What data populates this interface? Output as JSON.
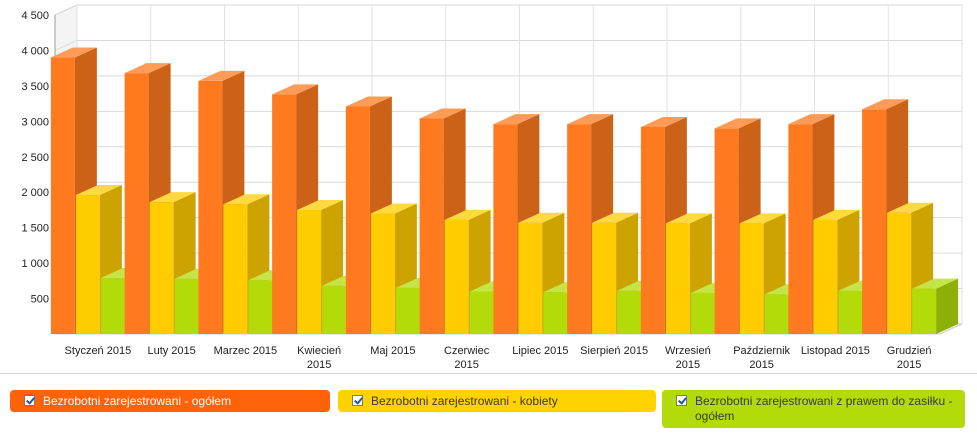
{
  "chart_data": {
    "type": "bar",
    "style": "3d-clustered",
    "categories": [
      [
        "Styczeń 2015"
      ],
      [
        "Luty 2015"
      ],
      [
        "Marzec 2015"
      ],
      [
        "Kwiecień",
        "2015"
      ],
      [
        "Maj 2015"
      ],
      [
        "Czerwiec",
        "2015"
      ],
      [
        "Lipiec 2015"
      ],
      [
        "Sierpień 2015"
      ],
      [
        "Wrzesień",
        "2015"
      ],
      [
        "Październik",
        "2015"
      ],
      [
        "Listopad 2015"
      ],
      [
        "Grudzień",
        "2015"
      ]
    ],
    "series": [
      {
        "name": "Bezrobotni zarejestrowani - ogółem",
        "color": "#ff7a1e",
        "values": [
          3900,
          3680,
          3570,
          3380,
          3210,
          3040,
          2960,
          2960,
          2920,
          2900,
          2960,
          3170
        ]
      },
      {
        "name": "Bezrobotni zarejestrowani - kobiety",
        "color": "#ffcc00",
        "values": [
          1960,
          1860,
          1830,
          1750,
          1700,
          1610,
          1570,
          1570,
          1560,
          1560,
          1610,
          1710
        ]
      },
      {
        "name": "Bezrobotni zarejestrowani z prawem do zasiłku - ogółem",
        "color": "#b2db09",
        "values": [
          790,
          780,
          760,
          680,
          650,
          600,
          590,
          610,
          580,
          560,
          610,
          640
        ]
      }
    ],
    "yticks": [
      "4 500",
      "4 000",
      "3 500",
      "3 000",
      "2 500",
      "2 000",
      "1 500",
      "1 000",
      "500"
    ],
    "ytick_values": [
      4500,
      4000,
      3500,
      3000,
      2500,
      2000,
      1500,
      1000,
      500
    ],
    "ylim": [
      0,
      4500
    ],
    "grid": true,
    "legend_position": "bottom"
  },
  "legend": {
    "items": [
      {
        "label": "Bezrobotni zarejestrowani - ogółem"
      },
      {
        "label": "Bezrobotni zarejestrowani - kobiety"
      },
      {
        "label": "Bezrobotni zarejestrowani z prawem do zasiłku -",
        "label_line2": "ogółem"
      }
    ]
  }
}
